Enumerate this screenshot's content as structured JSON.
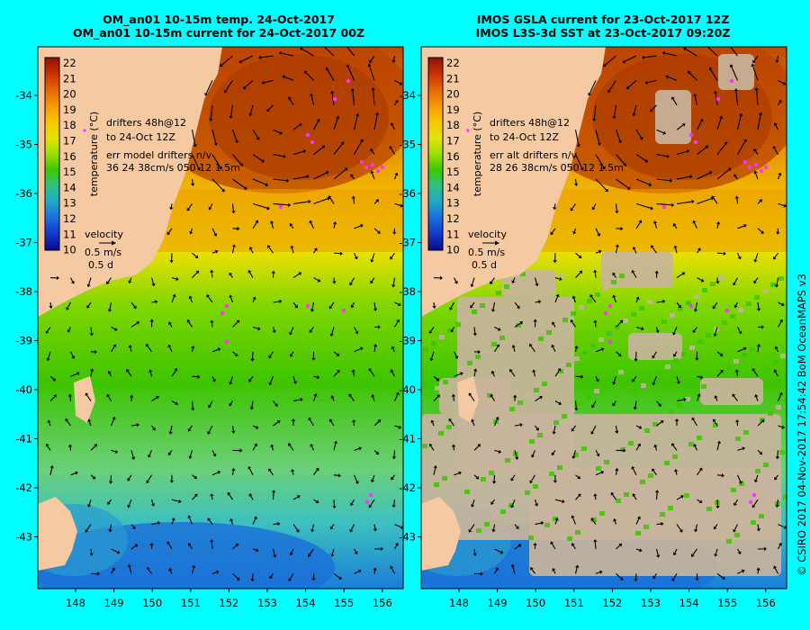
{
  "panels": [
    {
      "id": "left",
      "title_line1": "OM_an01 10-15m temp. 24-Oct-2017",
      "title_line2": "OM_an01 10-15m current for 24-Oct-2017 00Z",
      "drifter_note_1": "drifters 48h@12",
      "drifter_note_2": "to 24-Oct 12Z",
      "err_line_1": "err model drifters n/v",
      "err_line_2": "36 24 38cm/s 050 12 1.5m"
    },
    {
      "id": "right",
      "title_line1": "IMOS GSLA current for 23-Oct-2017 12Z",
      "title_line2": "IMOS L3S-3d SST at 23-Oct-2017 09:20Z",
      "drifter_note_1": "drifters 48h@12",
      "drifter_note_2": "to 24-Oct 12Z",
      "err_line_1": "err alt drifters n/v",
      "err_line_2": "28 26 38cm/s 050 12 1.5m"
    }
  ],
  "colorbar": {
    "label": "temperature (°C)",
    "ticks": [
      "22",
      "21",
      "20",
      "19",
      "18",
      "17",
      "16",
      "15",
      "14",
      "13",
      "12",
      "11",
      "10"
    ]
  },
  "velocity_key": {
    "title": "velocity",
    "speed": "0.5 m/s",
    "time": "0.5 d"
  },
  "axes": {
    "lat_ticks": [
      "-34",
      "-35",
      "-36",
      "-37",
      "-38",
      "-39",
      "-40",
      "-41",
      "-42",
      "-43"
    ],
    "lon_ticks": [
      "148",
      "149",
      "150",
      "151",
      "152",
      "153",
      "154",
      "155",
      "156"
    ]
  },
  "credit": "© CSIRO 2017   04-Nov-2017 17:54:42 BoM OceanMAPS v3",
  "colors": {
    "background": "#00ffff",
    "land": "#f5c9a1",
    "cloud": "#c8b49c",
    "drifters": "#ff33ff"
  }
}
